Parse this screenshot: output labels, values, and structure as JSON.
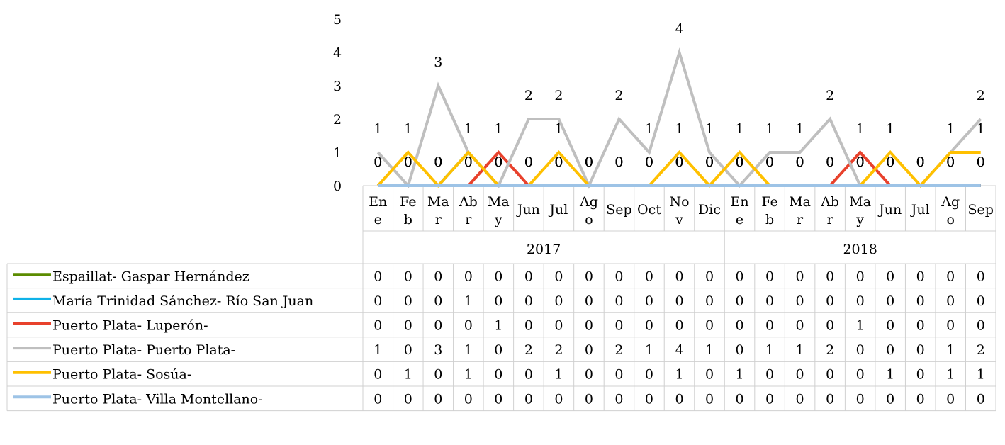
{
  "chart_data": {
    "type": "line",
    "title": "",
    "xlabel": "",
    "ylabel": "",
    "ylim": [
      0,
      5
    ],
    "yticks": [
      "0",
      "1",
      "2",
      "3",
      "4",
      "5"
    ],
    "grid": false,
    "legend": "data-table",
    "category_labels": [
      [
        "En",
        "e"
      ],
      [
        "Fe",
        "b"
      ],
      [
        "Ma",
        "r"
      ],
      [
        "Ab",
        "r"
      ],
      [
        "Ma",
        "y"
      ],
      [
        "Jun"
      ],
      [
        "Jul"
      ],
      [
        "Ag",
        "o"
      ],
      [
        "Sep"
      ],
      [
        "Oct"
      ],
      [
        "No",
        "v"
      ],
      [
        "Dic"
      ],
      [
        "En",
        "e"
      ],
      [
        "Fe",
        "b"
      ],
      [
        "Ma",
        "r"
      ],
      [
        "Ab",
        "r"
      ],
      [
        "Ma",
        "y"
      ],
      [
        "Jun"
      ],
      [
        "Jul"
      ],
      [
        "Ag",
        "o"
      ],
      [
        "Sep"
      ]
    ],
    "groups": [
      {
        "label": "2017",
        "count": 12
      },
      {
        "label": "2018",
        "count": 9
      }
    ],
    "series": [
      {
        "name": "Espaillat- Gaspar Hernández",
        "color": "#5b8c00",
        "values": [
          0,
          0,
          0,
          0,
          0,
          0,
          0,
          0,
          0,
          0,
          0,
          0,
          0,
          0,
          0,
          0,
          0,
          0,
          0,
          0,
          0
        ]
      },
      {
        "name": "María Trinidad Sánchez- Río San Juan",
        "color": "#0fb2e8",
        "values": [
          0,
          0,
          0,
          1,
          0,
          0,
          0,
          0,
          0,
          0,
          0,
          0,
          0,
          0,
          0,
          0,
          0,
          0,
          0,
          0,
          0
        ]
      },
      {
        "name": "Puerto Plata- Luperón-",
        "color": "#e8412c",
        "values": [
          0,
          0,
          0,
          0,
          1,
          0,
          0,
          0,
          0,
          0,
          0,
          0,
          0,
          0,
          0,
          0,
          1,
          0,
          0,
          0,
          0
        ]
      },
      {
        "name": "Puerto Plata- Puerto Plata-",
        "color": "#bfbfbf",
        "values": [
          1,
          0,
          3,
          1,
          0,
          2,
          2,
          0,
          2,
          1,
          4,
          1,
          0,
          1,
          1,
          2,
          0,
          0,
          0,
          1,
          2
        ]
      },
      {
        "name": "Puerto Plata- Sosúa-",
        "color": "#ffc000",
        "values": [
          0,
          1,
          0,
          1,
          0,
          0,
          1,
          0,
          0,
          0,
          1,
          0,
          1,
          0,
          0,
          0,
          0,
          1,
          0,
          1,
          1
        ]
      },
      {
        "name": "Puerto Plata- Villa Montellano-",
        "color": "#9dc3e6",
        "values": [
          0,
          0,
          0,
          0,
          0,
          0,
          0,
          0,
          0,
          0,
          0,
          0,
          0,
          0,
          0,
          0,
          0,
          0,
          0,
          0,
          0
        ]
      }
    ]
  }
}
